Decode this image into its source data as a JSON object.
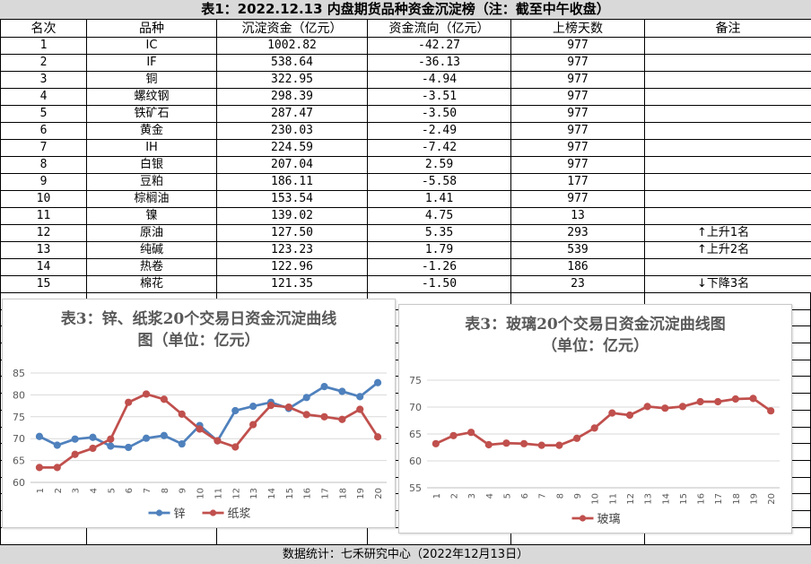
{
  "table": {
    "title": "表1：2022.12.13 内盘期货品种资金沉淀榜（注：截至中午收盘）",
    "headers": [
      "名次",
      "品种",
      "沉淀资金（亿元）",
      "资金流向（亿元）",
      "上榜天数",
      "备注"
    ],
    "rows": [
      {
        "rank": "1",
        "name": "IC",
        "fund": "1002.82",
        "flow": "-42.27",
        "days": "977",
        "note": ""
      },
      {
        "rank": "2",
        "name": "IF",
        "fund": "538.64",
        "flow": "-36.13",
        "days": "977",
        "note": ""
      },
      {
        "rank": "3",
        "name": "铜",
        "fund": "322.95",
        "flow": "-4.94",
        "days": "977",
        "note": ""
      },
      {
        "rank": "4",
        "name": "螺纹钢",
        "fund": "298.39",
        "flow": "-3.51",
        "days": "977",
        "note": ""
      },
      {
        "rank": "5",
        "name": "铁矿石",
        "fund": "287.47",
        "flow": "-3.50",
        "days": "977",
        "note": ""
      },
      {
        "rank": "6",
        "name": "黄金",
        "fund": "230.03",
        "flow": "-2.49",
        "days": "977",
        "note": ""
      },
      {
        "rank": "7",
        "name": "IH",
        "fund": "224.59",
        "flow": "-7.42",
        "days": "977",
        "note": ""
      },
      {
        "rank": "8",
        "name": "白银",
        "fund": "207.04",
        "flow": "2.59",
        "days": "977",
        "note": ""
      },
      {
        "rank": "9",
        "name": "豆粕",
        "fund": "186.11",
        "flow": "-5.58",
        "days": "177",
        "note": ""
      },
      {
        "rank": "10",
        "name": "棕榈油",
        "fund": "153.54",
        "flow": "1.41",
        "days": "977",
        "note": ""
      },
      {
        "rank": "11",
        "name": "镍",
        "fund": "139.02",
        "flow": "4.75",
        "days": "13",
        "note": ""
      },
      {
        "rank": "12",
        "name": "原油",
        "fund": "127.50",
        "flow": "5.35",
        "days": "293",
        "note": "上升1名",
        "dir": "↑"
      },
      {
        "rank": "13",
        "name": "纯碱",
        "fund": "123.23",
        "flow": "1.79",
        "days": "539",
        "note": "上升2名",
        "dir": "↑"
      },
      {
        "rank": "14",
        "name": "热卷",
        "fund": "122.96",
        "flow": "-1.26",
        "days": "186",
        "note": ""
      },
      {
        "rank": "15",
        "name": "棉花",
        "fund": "121.35",
        "flow": "-1.50",
        "days": "23",
        "note": "下降3名",
        "dir": "↓"
      }
    ]
  },
  "footer": "数据统计：七禾研究中心（2022年12月13日）",
  "chart_data": [
    {
      "type": "line",
      "title_line1": "表3：锌、纸浆20个交易日资金沉淀曲线",
      "title_line2": "图（单位：亿元）",
      "x": [
        1,
        2,
        3,
        4,
        5,
        6,
        7,
        8,
        9,
        10,
        11,
        12,
        13,
        14,
        15,
        16,
        17,
        18,
        19,
        20
      ],
      "ylim": [
        60,
        85
      ],
      "yticks": [
        60,
        65,
        70,
        75,
        80,
        85
      ],
      "grid": true,
      "legend": "bottom",
      "series": [
        {
          "name": "锌",
          "color": "#4f81bd",
          "values": [
            70.5,
            68.5,
            69.9,
            70.3,
            68.3,
            68.0,
            70.1,
            70.7,
            68.8,
            73.0,
            69.5,
            76.4,
            77.4,
            78.3,
            76.9,
            79.4,
            81.9,
            80.8,
            79.6,
            82.8
          ]
        },
        {
          "name": "纸浆",
          "color": "#c0504d",
          "values": [
            63.4,
            63.4,
            66.4,
            67.8,
            69.9,
            78.3,
            80.2,
            79.0,
            75.6,
            72.2,
            69.5,
            68.1,
            73.2,
            77.6,
            77.2,
            75.5,
            75.0,
            74.4,
            76.7,
            70.4
          ]
        }
      ]
    },
    {
      "type": "line",
      "title_line1": "表3：玻璃20个交易日资金沉淀曲线图",
      "title_line2": "（单位：亿元）",
      "x": [
        1,
        2,
        3,
        4,
        5,
        6,
        7,
        8,
        9,
        10,
        11,
        12,
        13,
        14,
        15,
        16,
        17,
        18,
        19,
        20
      ],
      "ylim": [
        55,
        75
      ],
      "yticks": [
        55,
        60,
        65,
        70,
        75
      ],
      "grid": true,
      "legend": "bottom",
      "series": [
        {
          "name": "玻璃",
          "color": "#c0504d",
          "values": [
            63.2,
            64.7,
            65.3,
            63.0,
            63.3,
            63.2,
            62.9,
            62.9,
            64.2,
            66.1,
            68.9,
            68.5,
            70.1,
            69.8,
            70.1,
            71.0,
            71.0,
            71.5,
            71.6,
            69.3
          ]
        }
      ]
    }
  ]
}
